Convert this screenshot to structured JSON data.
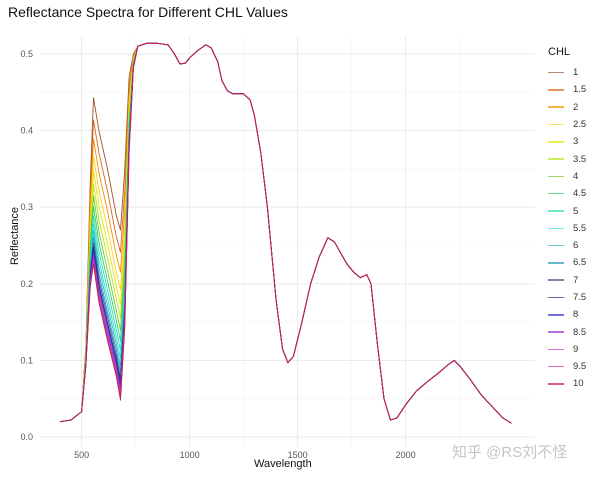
{
  "chart_data": {
    "type": "line",
    "title": "Reflectance Spectra for Different CHL Values",
    "xlabel": "Wavelength",
    "ylabel": "Reflectance",
    "xlim": [
      310,
      2600
    ],
    "ylim": [
      -0.01,
      0.53
    ],
    "x_ticks": [
      500,
      1000,
      1500,
      2000
    ],
    "y_ticks": [
      0.0,
      0.1,
      0.2,
      0.3,
      0.4,
      0.5
    ],
    "y_tick_labels": [
      "0.0",
      "0.1",
      "0.2",
      "0.3",
      "0.4",
      "0.5"
    ],
    "grid": true,
    "legend_title": "CHL",
    "legend_position": "right",
    "x_visible": [
      400,
      450,
      500,
      520,
      540,
      555,
      580,
      620,
      660,
      680,
      700,
      720,
      740,
      760
    ],
    "series": [
      {
        "name": "1",
        "color": "#a0522d",
        "values": [
          0.02,
          0.022,
          0.033,
          0.12,
          0.33,
          0.443,
          0.4,
          0.35,
          0.29,
          0.27,
          0.35,
          0.47,
          0.5,
          0.51
        ]
      },
      {
        "name": "1.5",
        "color": "#d2691e",
        "values": [
          0.02,
          0.022,
          0.033,
          0.116,
          0.312,
          0.414,
          0.371,
          0.321,
          0.262,
          0.241,
          0.323,
          0.457,
          0.498,
          0.51
        ]
      },
      {
        "name": "2",
        "color": "#ff8c00",
        "values": [
          0.02,
          0.022,
          0.033,
          0.113,
          0.297,
          0.389,
          0.345,
          0.295,
          0.238,
          0.215,
          0.299,
          0.446,
          0.496,
          0.51
        ]
      },
      {
        "name": "2.5",
        "color": "#ffd21f",
        "values": [
          0.02,
          0.022,
          0.033,
          0.111,
          0.283,
          0.367,
          0.322,
          0.272,
          0.216,
          0.192,
          0.278,
          0.436,
          0.494,
          0.51
        ]
      },
      {
        "name": "3",
        "color": "#e6e600",
        "values": [
          0.02,
          0.022,
          0.033,
          0.108,
          0.271,
          0.348,
          0.302,
          0.252,
          0.198,
          0.173,
          0.26,
          0.427,
          0.492,
          0.51
        ]
      },
      {
        "name": "3.5",
        "color": "#b3e61a",
        "values": [
          0.02,
          0.022,
          0.033,
          0.106,
          0.26,
          0.33,
          0.284,
          0.234,
          0.181,
          0.155,
          0.243,
          0.419,
          0.491,
          0.51
        ]
      },
      {
        "name": "4",
        "color": "#66cc33",
        "values": [
          0.02,
          0.022,
          0.033,
          0.104,
          0.251,
          0.315,
          0.268,
          0.218,
          0.166,
          0.139,
          0.229,
          0.412,
          0.489,
          0.51
        ]
      },
      {
        "name": "4.5",
        "color": "#33cc66",
        "values": [
          0.02,
          0.022,
          0.033,
          0.103,
          0.243,
          0.301,
          0.254,
          0.204,
          0.153,
          0.125,
          0.216,
          0.406,
          0.488,
          0.51
        ]
      },
      {
        "name": "5",
        "color": "#33ddaa",
        "values": [
          0.02,
          0.022,
          0.033,
          0.101,
          0.235,
          0.289,
          0.242,
          0.192,
          0.141,
          0.113,
          0.205,
          0.4,
          0.487,
          0.51
        ]
      },
      {
        "name": "5.5",
        "color": "#33dddd",
        "values": [
          0.02,
          0.022,
          0.033,
          0.1,
          0.229,
          0.279,
          0.231,
          0.181,
          0.131,
          0.103,
          0.195,
          0.396,
          0.487,
          0.51
        ]
      },
      {
        "name": "6",
        "color": "#22bbcc",
        "values": [
          0.02,
          0.022,
          0.033,
          0.099,
          0.223,
          0.27,
          0.222,
          0.172,
          0.122,
          0.093,
          0.186,
          0.392,
          0.486,
          0.51
        ]
      },
      {
        "name": "6.5",
        "color": "#2299bb",
        "values": [
          0.02,
          0.022,
          0.033,
          0.098,
          0.218,
          0.261,
          0.213,
          0.163,
          0.114,
          0.085,
          0.178,
          0.388,
          0.485,
          0.51
        ]
      },
      {
        "name": "7",
        "color": "#445588",
        "values": [
          0.02,
          0.022,
          0.033,
          0.097,
          0.213,
          0.254,
          0.206,
          0.156,
          0.107,
          0.077,
          0.171,
          0.385,
          0.484,
          0.51
        ]
      },
      {
        "name": "7.5",
        "color": "#222288",
        "values": [
          0.02,
          0.022,
          0.033,
          0.096,
          0.21,
          0.248,
          0.199,
          0.149,
          0.101,
          0.071,
          0.165,
          0.382,
          0.484,
          0.51
        ]
      },
      {
        "name": "8",
        "color": "#3333cc",
        "values": [
          0.02,
          0.022,
          0.033,
          0.095,
          0.206,
          0.242,
          0.194,
          0.144,
          0.096,
          0.065,
          0.16,
          0.379,
          0.483,
          0.51
        ]
      },
      {
        "name": "8.5",
        "color": "#9933cc",
        "values": [
          0.02,
          0.022,
          0.033,
          0.095,
          0.203,
          0.237,
          0.188,
          0.138,
          0.091,
          0.06,
          0.155,
          0.377,
          0.483,
          0.51
        ]
      },
      {
        "name": "9",
        "color": "#cc33cc",
        "values": [
          0.02,
          0.022,
          0.033,
          0.094,
          0.2,
          0.233,
          0.184,
          0.134,
          0.087,
          0.055,
          0.151,
          0.375,
          0.483,
          0.51
        ]
      },
      {
        "name": "9.5",
        "color": "#cc3399",
        "values": [
          0.02,
          0.022,
          0.033,
          0.094,
          0.198,
          0.229,
          0.18,
          0.13,
          0.083,
          0.052,
          0.147,
          0.373,
          0.482,
          0.51
        ]
      },
      {
        "name": "10",
        "color": "#c0204a",
        "values": [
          0.02,
          0.022,
          0.033,
          0.093,
          0.196,
          0.226,
          0.176,
          0.126,
          0.08,
          0.048,
          0.144,
          0.372,
          0.482,
          0.51
        ]
      }
    ],
    "common_tail": {
      "x": [
        780,
        800,
        850,
        900,
        930,
        955,
        980,
        1000,
        1040,
        1075,
        1100,
        1130,
        1150,
        1175,
        1200,
        1250,
        1280,
        1300,
        1330,
        1360,
        1400,
        1430,
        1455,
        1480,
        1520,
        1560,
        1600,
        1640,
        1670,
        1700,
        1730,
        1760,
        1790,
        1820,
        1840,
        1870,
        1900,
        1930,
        1960,
        2000,
        2050,
        2100,
        2150,
        2200,
        2225,
        2250,
        2300,
        2350,
        2400,
        2450,
        2490
      ],
      "values": [
        0.512,
        0.514,
        0.514,
        0.512,
        0.5,
        0.487,
        0.488,
        0.495,
        0.505,
        0.512,
        0.508,
        0.49,
        0.465,
        0.452,
        0.448,
        0.448,
        0.44,
        0.42,
        0.37,
        0.3,
        0.18,
        0.115,
        0.097,
        0.105,
        0.15,
        0.2,
        0.235,
        0.26,
        0.255,
        0.24,
        0.225,
        0.215,
        0.208,
        0.212,
        0.2,
        0.12,
        0.05,
        0.022,
        0.025,
        0.042,
        0.06,
        0.072,
        0.083,
        0.095,
        0.1,
        0.093,
        0.075,
        0.055,
        0.04,
        0.025,
        0.018
      ]
    }
  },
  "watermark": "知乎 @RS刘不怪"
}
